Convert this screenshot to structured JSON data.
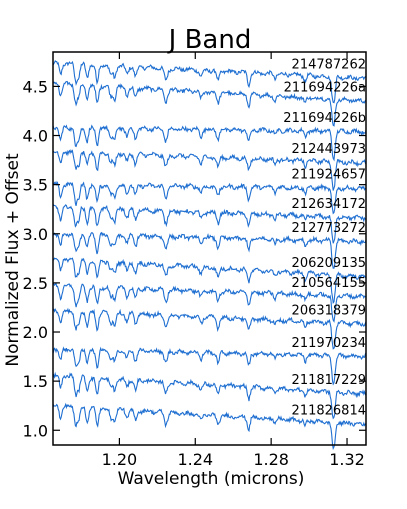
{
  "chart_data": {
    "type": "line",
    "title": "J Band",
    "xlabel": "Wavelength (microns)",
    "ylabel": "Normalized Flux + Offset",
    "xlim": [
      1.165,
      1.33
    ],
    "ylim": [
      0.85,
      4.85
    ],
    "x_ticks": [
      {
        "value": 1.2,
        "label": "1.20"
      },
      {
        "value": 1.24,
        "label": "1.24"
      },
      {
        "value": 1.28,
        "label": "1.28"
      },
      {
        "value": 1.32,
        "label": "1.32"
      }
    ],
    "y_ticks": [
      {
        "value": 1.0,
        "label": "1.0"
      },
      {
        "value": 1.5,
        "label": "1.5"
      },
      {
        "value": 2.0,
        "label": "2.0"
      },
      {
        "value": 2.5,
        "label": "2.5"
      },
      {
        "value": 3.0,
        "label": "3.0"
      },
      {
        "value": 3.5,
        "label": "3.5"
      },
      {
        "value": 4.0,
        "label": "4.0"
      },
      {
        "value": 4.5,
        "label": "4.5"
      }
    ],
    "grid": false,
    "line_color": "#1f6fd1",
    "series": [
      {
        "name": "214787262",
        "start": 4.74,
        "end": 4.58
      },
      {
        "name": "211694226a",
        "start": 4.53,
        "end": 4.35
      },
      {
        "name": "211694226b",
        "start": 4.08,
        "end": 4.04
      },
      {
        "name": "212443973",
        "start": 3.84,
        "end": 3.72
      },
      {
        "name": "211924657",
        "start": 3.5,
        "end": 3.46
      },
      {
        "name": "212634172",
        "start": 3.27,
        "end": 3.16
      },
      {
        "name": "212773272",
        "start": 3.0,
        "end": 2.92
      },
      {
        "name": "206209135",
        "start": 2.75,
        "end": 2.56
      },
      {
        "name": "210564155",
        "start": 2.47,
        "end": 2.36
      },
      {
        "name": "206318379",
        "start": 2.22,
        "end": 2.08
      },
      {
        "name": "211970234",
        "start": 1.83,
        "end": 1.75
      },
      {
        "name": "211817229",
        "start": 1.56,
        "end": 1.37
      },
      {
        "name": "211826814",
        "start": 1.25,
        "end": 1.06
      }
    ],
    "absorption_lines": [
      {
        "x": 1.169,
        "depth": 0.12,
        "width": 0.001
      },
      {
        "x": 1.177,
        "depth": 0.18,
        "width": 0.001
      },
      {
        "x": 1.1786,
        "depth": 0.12,
        "width": 0.0009
      },
      {
        "x": 1.183,
        "depth": 0.14,
        "width": 0.001
      },
      {
        "x": 1.1883,
        "depth": 0.18,
        "width": 0.001
      },
      {
        "x": 1.1955,
        "depth": 0.1,
        "width": 0.001
      },
      {
        "x": 1.1975,
        "depth": 0.12,
        "width": 0.001
      },
      {
        "x": 1.204,
        "depth": 0.08,
        "width": 0.001
      },
      {
        "x": 1.2085,
        "depth": 0.1,
        "width": 0.001
      },
      {
        "x": 1.2245,
        "depth": 0.12,
        "width": 0.0012
      },
      {
        "x": 1.243,
        "depth": 0.07,
        "width": 0.001
      },
      {
        "x": 1.252,
        "depth": 0.1,
        "width": 0.001
      },
      {
        "x": 1.2682,
        "depth": 0.12,
        "width": 0.001
      },
      {
        "x": 1.282,
        "depth": 0.05,
        "width": 0.0008
      },
      {
        "x": 1.298,
        "depth": 0.06,
        "width": 0.0008
      },
      {
        "x": 1.3125,
        "depth": 0.22,
        "width": 0.0009
      },
      {
        "x": 1.3135,
        "depth": 0.16,
        "width": 0.0008
      }
    ]
  }
}
